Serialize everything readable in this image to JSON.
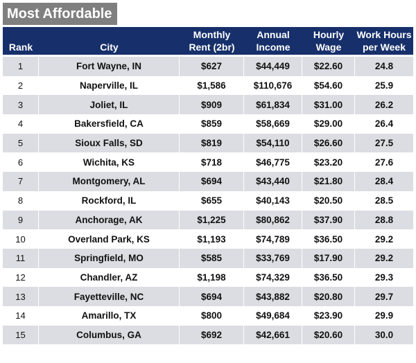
{
  "title": "Most Affordable",
  "headers": {
    "rank": "Rank",
    "city": "City",
    "rent_line1": "Monthly",
    "rent_line2": "Rent (2br)",
    "income_line1": "Annual",
    "income_line2": "Income",
    "wage_line1": "Hourly",
    "wage_line2": "Wage",
    "hours_line1": "Work Hours",
    "hours_line2": "per Week"
  },
  "rows": [
    {
      "rank": "1",
      "city": "Fort Wayne, IN",
      "rent": "$627",
      "income": "$44,449",
      "wage": "$22.60",
      "hours": "24.8"
    },
    {
      "rank": "2",
      "city": "Naperville, IL",
      "rent": "$1,586",
      "income": "$110,676",
      "wage": "$54.60",
      "hours": "25.9"
    },
    {
      "rank": "3",
      "city": "Joliet, IL",
      "rent": "$909",
      "income": "$61,834",
      "wage": "$31.00",
      "hours": "26.2"
    },
    {
      "rank": "4",
      "city": "Bakersfield, CA",
      "rent": "$859",
      "income": "$58,669",
      "wage": "$29.00",
      "hours": "26.4"
    },
    {
      "rank": "5",
      "city": "Sioux Falls, SD",
      "rent": "$819",
      "income": "$54,110",
      "wage": "$26.60",
      "hours": "27.5"
    },
    {
      "rank": "6",
      "city": "Wichita, KS",
      "rent": "$718",
      "income": "$46,775",
      "wage": "$23.20",
      "hours": "27.6"
    },
    {
      "rank": "7",
      "city": "Montgomery, AL",
      "rent": "$694",
      "income": "$43,440",
      "wage": "$21.80",
      "hours": "28.4"
    },
    {
      "rank": "8",
      "city": "Rockford, IL",
      "rent": "$655",
      "income": "$40,143",
      "wage": "$20.50",
      "hours": "28.5"
    },
    {
      "rank": "9",
      "city": "Anchorage, AK",
      "rent": "$1,225",
      "income": "$80,862",
      "wage": "$37.90",
      "hours": "28.8"
    },
    {
      "rank": "10",
      "city": "Overland Park, KS",
      "rent": "$1,193",
      "income": "$74,789",
      "wage": "$36.50",
      "hours": "29.2"
    },
    {
      "rank": "11",
      "city": "Springfield, MO",
      "rent": "$585",
      "income": "$33,769",
      "wage": "$17.90",
      "hours": "29.2"
    },
    {
      "rank": "12",
      "city": "Chandler, AZ",
      "rent": "$1,198",
      "income": "$74,329",
      "wage": "$36.50",
      "hours": "29.3"
    },
    {
      "rank": "13",
      "city": "Fayetteville, NC",
      "rent": "$694",
      "income": "$43,882",
      "wage": "$20.80",
      "hours": "29.7"
    },
    {
      "rank": "14",
      "city": "Amarillo, TX",
      "rent": "$800",
      "income": "$49,684",
      "wage": "$23.90",
      "hours": "29.9"
    },
    {
      "rank": "15",
      "city": "Columbus, GA",
      "rent": "$692",
      "income": "$42,661",
      "wage": "$20.60",
      "hours": "30.0"
    }
  ]
}
